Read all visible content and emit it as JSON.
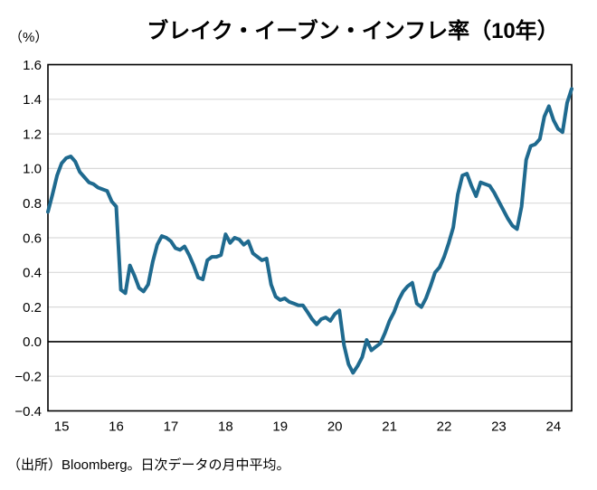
{
  "chart_data": {
    "type": "line",
    "title": "ブレイク・イーブン・インフレ率（10年）",
    "unit_label": "（%）",
    "source_note": "（出所）Bloomberg。日次データの月中平均。",
    "ylim": [
      -0.4,
      1.6
    ],
    "ytick_values": [
      1.6,
      1.4,
      1.2,
      1.0,
      0.8,
      0.6,
      0.4,
      0.2,
      0.0,
      -0.2,
      -0.4
    ],
    "ytick_labels": [
      "1.6",
      "1.4",
      "1.2",
      "1.0",
      "0.8",
      "0.6",
      "0.4",
      "0.2",
      "0.0",
      "−0.2",
      "−0.4"
    ],
    "xtick_labels": [
      "15",
      "16",
      "17",
      "18",
      "19",
      "20",
      "21",
      "22",
      "23",
      "24"
    ],
    "grid": "horizontal",
    "legend": "none",
    "zero_line": true,
    "line_color": "#1f6a8f",
    "grid_color": "#d9d9d9",
    "axis_color": "#000000",
    "series": [
      {
        "name": "ブレイク・イーブン・インフレ率（10年）",
        "frequency": "monthly",
        "start": "2014-10",
        "end": "2024-05",
        "values": [
          0.75,
          0.85,
          0.96,
          1.03,
          1.06,
          1.07,
          1.04,
          0.98,
          0.95,
          0.92,
          0.91,
          0.89,
          0.88,
          0.87,
          0.81,
          0.78,
          0.3,
          0.28,
          0.44,
          0.38,
          0.31,
          0.29,
          0.33,
          0.46,
          0.56,
          0.61,
          0.6,
          0.58,
          0.54,
          0.53,
          0.55,
          0.5,
          0.44,
          0.37,
          0.36,
          0.47,
          0.49,
          0.49,
          0.5,
          0.62,
          0.57,
          0.6,
          0.59,
          0.56,
          0.58,
          0.51,
          0.49,
          0.47,
          0.48,
          0.33,
          0.26,
          0.24,
          0.25,
          0.23,
          0.22,
          0.21,
          0.21,
          0.17,
          0.13,
          0.1,
          0.13,
          0.14,
          0.12,
          0.16,
          0.18,
          -0.02,
          -0.13,
          -0.18,
          -0.14,
          -0.09,
          0.01,
          -0.05,
          -0.03,
          -0.01,
          0.05,
          0.12,
          0.17,
          0.24,
          0.29,
          0.32,
          0.34,
          0.22,
          0.2,
          0.25,
          0.32,
          0.4,
          0.43,
          0.49,
          0.57,
          0.66,
          0.85,
          0.96,
          0.97,
          0.9,
          0.84,
          0.92,
          0.91,
          0.9,
          0.86,
          0.81,
          0.76,
          0.71,
          0.67,
          0.65,
          0.78,
          1.05,
          1.13,
          1.14,
          1.17,
          1.3,
          1.36,
          1.28,
          1.23,
          1.21,
          1.38,
          1.46
        ]
      }
    ]
  }
}
